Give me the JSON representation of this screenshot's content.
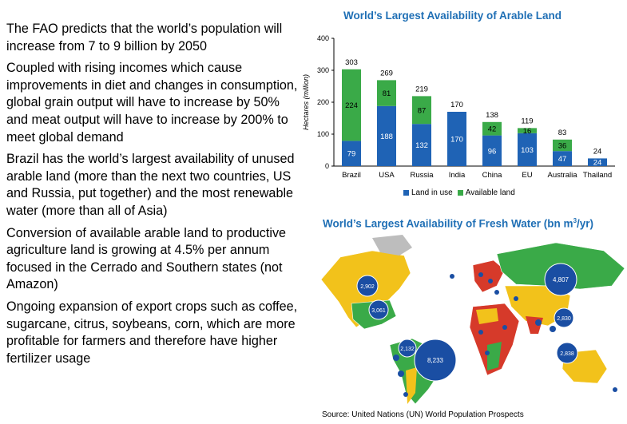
{
  "bullets": [
    "The FAO predicts that the world’s population will increase from 7 to 9 billion by 2050",
    "Coupled with rising incomes which cause improvements in diet and changes in consumption, global grain output will have to increase by 50% and meat output will have to increase by 200% to meet global demand",
    "Brazil has the world’s largest availability of unused arable land  (more than the next two countries, US and Russia, put together) and the most renewable water (more than all of Asia)",
    "Conversion of available arable land to productive agriculture land is growing at 4.5% per annum focused in the Cerrado and Southern states (not Amazon)",
    "Ongoing expansion of export crops such as coffee, sugarcane, citrus, soybeans, corn, which are more profitable for farmers and therefore have higher fertilizer usage"
  ],
  "map": {
    "title": "World’s Largest Availability of Fresh Water (bn m³/yr)",
    "bubbles": [
      {
        "label": "4,807"
      },
      {
        "label": "2,902"
      },
      {
        "label": "3,061"
      },
      {
        "label": "2,830"
      },
      {
        "label": "2,132"
      },
      {
        "label": "8,233"
      },
      {
        "label": "2,838"
      }
    ]
  },
  "source": "Source: United Nations (UN) World Population Prospects",
  "colors": {
    "land_in_use": "#1f63b5",
    "available_land": "#3aaa48",
    "title_blue": "#1f6fb5",
    "map_bubble": "#1a4ea3",
    "map_green": "#3aaa48",
    "map_yellow": "#f2c21b",
    "map_red": "#d63a2a",
    "map_grey": "#bdbdbd"
  },
  "chart_data": {
    "type": "bar",
    "stacked": true,
    "title": "World’s Largest Availability of Arable Land",
    "xlabel": "",
    "ylabel": "Hectares (million)",
    "ylim": [
      0,
      400
    ],
    "yticks": [
      "0",
      "100",
      "200",
      "300",
      "400"
    ],
    "categories": [
      "Brazil",
      "USA",
      "Russia",
      "India",
      "China",
      "EU",
      "Australia",
      "Thailand"
    ],
    "series": [
      {
        "name": "Land in use",
        "values": [
          79,
          188,
          132,
          170,
          96,
          103,
          47,
          24
        ]
      },
      {
        "name": "Available land",
        "values": [
          224,
          81,
          87,
          0,
          42,
          16,
          36,
          0
        ]
      }
    ],
    "totals": [
      303,
      269,
      219,
      170,
      138,
      119,
      83,
      24
    ],
    "legend": "bottom",
    "grid": false
  }
}
